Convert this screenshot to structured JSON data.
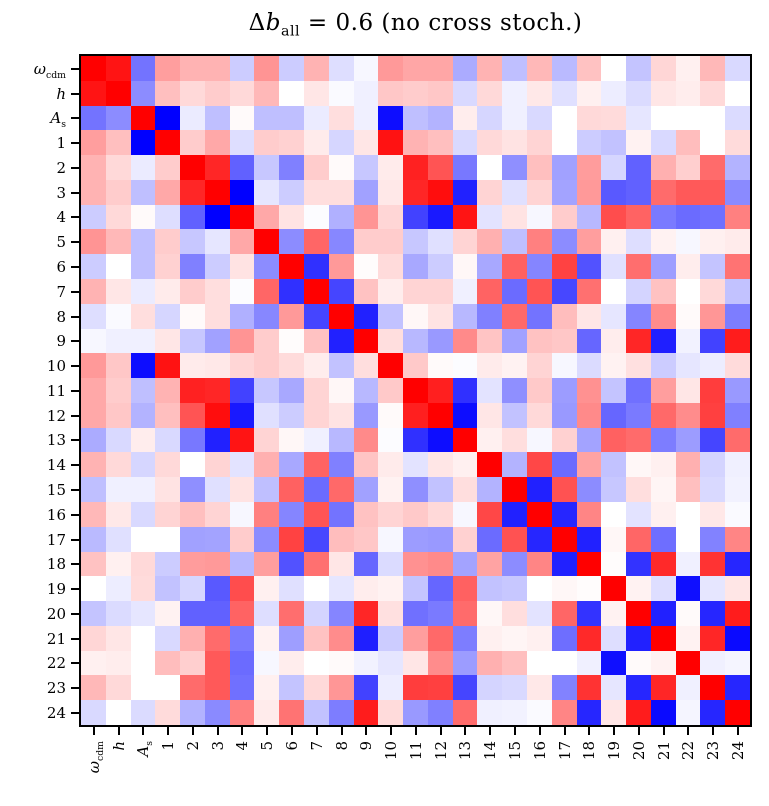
{
  "figure": {
    "background": "#ffffff",
    "border_color": "#000000"
  },
  "chart_data": {
    "type": "heatmap",
    "title": "Δb_all = 0.6 (no cross stoch.)",
    "title_parts": {
      "delta": "Δ",
      "variable": "b",
      "subscript": "all",
      "rest": " = 0.6 (no cross stoch.)"
    },
    "colormap": "bwr",
    "vmin": -1,
    "vmax": 1,
    "n_rows": 27,
    "n_cols": 27,
    "grid": false,
    "positive_color": "#ff0000",
    "negative_color": "#0000ff",
    "zero_color": "#ffffff",
    "labels": [
      "ω_cdm",
      "h",
      "A_s",
      "1",
      "2",
      "3",
      "4",
      "5",
      "6",
      "7",
      "8",
      "9",
      "10",
      "11",
      "12",
      "13",
      "14",
      "15",
      "16",
      "17",
      "18",
      "19",
      "20",
      "21",
      "22",
      "23",
      "24"
    ],
    "label_parts": [
      {
        "main": "ω",
        "sub": "cdm",
        "italic": true
      },
      {
        "main": "h",
        "italic": true
      },
      {
        "main": "A",
        "sub": "s",
        "italic": true
      },
      {
        "main": "1"
      },
      {
        "main": "2"
      },
      {
        "main": "3"
      },
      {
        "main": "4"
      },
      {
        "main": "5"
      },
      {
        "main": "6"
      },
      {
        "main": "7"
      },
      {
        "main": "8"
      },
      {
        "main": "9"
      },
      {
        "main": "10"
      },
      {
        "main": "11"
      },
      {
        "main": "12"
      },
      {
        "main": "13"
      },
      {
        "main": "14"
      },
      {
        "main": "15"
      },
      {
        "main": "16"
      },
      {
        "main": "17"
      },
      {
        "main": "18"
      },
      {
        "main": "19"
      },
      {
        "main": "20"
      },
      {
        "main": "21"
      },
      {
        "main": "22"
      },
      {
        "main": "23"
      },
      {
        "main": "24"
      }
    ],
    "matrix": [
      [
        1.0,
        0.92,
        -0.55,
        0.38,
        0.3,
        0.3,
        -0.2,
        0.42,
        -0.2,
        0.3,
        -0.13,
        -0.03,
        0.4,
        0.35,
        0.35,
        -0.33,
        0.3,
        -0.25,
        0.28,
        -0.27,
        0.24,
        0.0,
        -0.23,
        0.16,
        0.06,
        0.28,
        -0.15
      ],
      [
        0.92,
        1.0,
        -0.45,
        0.25,
        0.15,
        0.2,
        0.15,
        0.28,
        0.0,
        0.1,
        -0.02,
        -0.06,
        0.22,
        0.2,
        0.22,
        -0.15,
        0.15,
        -0.06,
        0.09,
        -0.12,
        0.06,
        -0.07,
        -0.14,
        0.1,
        0.07,
        0.15,
        0.0
      ],
      [
        -0.55,
        -0.45,
        1.0,
        -1.0,
        -0.08,
        -0.25,
        0.02,
        -0.25,
        -0.25,
        -0.08,
        0.13,
        -0.06,
        -0.95,
        -0.25,
        -0.3,
        0.07,
        -0.16,
        -0.06,
        -0.15,
        0.0,
        0.15,
        0.14,
        -0.1,
        0.0,
        0.0,
        0.0,
        -0.14
      ],
      [
        0.38,
        0.25,
        -1.0,
        1.0,
        0.2,
        0.34,
        -0.13,
        0.2,
        0.18,
        0.08,
        -0.16,
        0.1,
        0.93,
        0.3,
        0.25,
        -0.15,
        0.15,
        0.11,
        0.17,
        0.0,
        -0.2,
        -0.24,
        0.05,
        -0.15,
        0.26,
        0.0,
        0.14
      ],
      [
        0.3,
        0.15,
        -0.08,
        0.2,
        1.0,
        0.85,
        -0.62,
        -0.22,
        -0.5,
        0.2,
        0.02,
        -0.22,
        0.08,
        0.87,
        0.67,
        -0.53,
        0.0,
        -0.44,
        0.25,
        -0.37,
        0.39,
        -0.16,
        -0.62,
        0.31,
        0.19,
        0.58,
        -0.3
      ],
      [
        0.3,
        0.2,
        -0.25,
        0.34,
        0.85,
        1.0,
        -1.0,
        -0.1,
        -0.2,
        0.13,
        0.13,
        -0.37,
        0.09,
        0.85,
        0.95,
        -0.87,
        0.17,
        -0.12,
        0.17,
        -0.36,
        0.4,
        -0.65,
        -0.62,
        0.58,
        0.65,
        0.65,
        -0.46
      ],
      [
        -0.2,
        0.15,
        0.02,
        -0.13,
        -0.62,
        -1.0,
        1.0,
        0.34,
        0.11,
        -0.01,
        -0.31,
        0.42,
        0.16,
        -0.74,
        -0.9,
        0.92,
        -0.11,
        0.11,
        -0.03,
        0.2,
        -0.28,
        0.7,
        0.61,
        -0.52,
        -0.58,
        -0.56,
        0.5
      ],
      [
        0.42,
        0.28,
        -0.25,
        0.2,
        -0.22,
        -0.1,
        0.34,
        1.0,
        -0.45,
        0.6,
        -0.47,
        0.2,
        0.2,
        -0.22,
        -0.12,
        0.17,
        0.31,
        -0.25,
        0.5,
        -0.45,
        0.38,
        0.06,
        -0.13,
        0.05,
        -0.03,
        0.06,
        0.08
      ],
      [
        -0.2,
        0.0,
        -0.25,
        0.18,
        -0.5,
        -0.2,
        0.11,
        -0.45,
        1.0,
        -0.81,
        0.4,
        0.01,
        0.14,
        -0.34,
        -0.2,
        0.03,
        -0.34,
        0.62,
        -0.48,
        0.74,
        -0.68,
        -0.12,
        0.57,
        -0.38,
        0.07,
        -0.23,
        0.55
      ],
      [
        0.3,
        0.1,
        -0.08,
        0.08,
        0.2,
        0.13,
        -0.01,
        0.6,
        -0.81,
        1.0,
        -0.73,
        0.24,
        0.07,
        0.17,
        0.17,
        -0.06,
        0.61,
        -0.58,
        0.67,
        -0.72,
        0.56,
        0.0,
        -0.17,
        0.24,
        0.0,
        0.15,
        -0.24
      ],
      [
        -0.13,
        -0.02,
        0.13,
        -0.16,
        0.02,
        0.13,
        -0.31,
        -0.47,
        0.4,
        -0.73,
        1.0,
        -0.87,
        -0.24,
        0.03,
        0.11,
        -0.28,
        -0.5,
        0.59,
        -0.55,
        0.26,
        0.1,
        -0.1,
        -0.48,
        0.45,
        0.02,
        0.41,
        -0.51
      ],
      [
        -0.03,
        -0.06,
        -0.06,
        0.1,
        -0.22,
        -0.37,
        0.42,
        0.2,
        0.01,
        0.24,
        -0.87,
        1.0,
        0.13,
        -0.28,
        -0.4,
        0.46,
        0.23,
        -0.37,
        0.24,
        0.22,
        -0.6,
        0.07,
        0.85,
        -0.88,
        -0.05,
        -0.74,
        0.89
      ],
      [
        0.4,
        0.22,
        -0.95,
        0.93,
        0.08,
        0.09,
        0.16,
        0.2,
        0.14,
        0.07,
        -0.24,
        0.13,
        1.0,
        0.21,
        0.02,
        -0.01,
        0.08,
        0.05,
        0.17,
        -0.03,
        -0.14,
        0.05,
        0.12,
        -0.2,
        -0.1,
        -0.07,
        0.14
      ],
      [
        0.34,
        0.2,
        -0.25,
        0.3,
        0.87,
        0.85,
        -0.74,
        -0.22,
        -0.34,
        0.17,
        0.03,
        -0.28,
        0.21,
        1.0,
        0.88,
        -0.81,
        -0.11,
        -0.44,
        0.21,
        -0.39,
        0.43,
        -0.23,
        -0.56,
        0.38,
        0.1,
        0.76,
        -0.4
      ],
      [
        0.34,
        0.22,
        -0.3,
        0.25,
        0.67,
        0.95,
        -0.9,
        -0.12,
        -0.2,
        0.17,
        0.11,
        -0.4,
        0.02,
        0.88,
        1.0,
        -0.95,
        0.1,
        -0.24,
        0.15,
        -0.4,
        0.46,
        -0.6,
        -0.52,
        0.59,
        0.45,
        0.75,
        -0.5
      ],
      [
        -0.33,
        -0.15,
        0.07,
        -0.15,
        -0.53,
        -0.87,
        0.92,
        0.17,
        0.03,
        -0.06,
        -0.28,
        0.46,
        -0.01,
        -0.81,
        -0.95,
        1.0,
        0.06,
        0.13,
        -0.03,
        0.18,
        -0.36,
        0.62,
        0.58,
        -0.51,
        -0.39,
        -0.73,
        0.58
      ],
      [
        0.3,
        0.15,
        -0.16,
        0.15,
        0.0,
        0.17,
        -0.11,
        0.31,
        -0.34,
        0.61,
        -0.5,
        0.23,
        0.08,
        -0.11,
        0.1,
        0.06,
        1.0,
        -0.3,
        0.72,
        -0.58,
        0.36,
        -0.24,
        0.03,
        0.06,
        0.31,
        -0.17,
        -0.06
      ],
      [
        -0.25,
        -0.06,
        -0.06,
        0.11,
        -0.44,
        -0.12,
        0.11,
        -0.25,
        0.62,
        -0.58,
        0.59,
        -0.37,
        0.05,
        -0.44,
        -0.24,
        0.13,
        -0.3,
        1.0,
        -0.87,
        0.68,
        -0.45,
        -0.22,
        0.13,
        0.04,
        0.25,
        -0.15,
        -0.05
      ],
      [
        0.28,
        0.09,
        -0.15,
        0.17,
        0.25,
        0.17,
        -0.03,
        0.5,
        -0.48,
        0.67,
        -0.55,
        0.24,
        0.17,
        0.21,
        0.15,
        -0.03,
        0.72,
        -0.87,
        1.0,
        -0.85,
        0.48,
        0.0,
        -0.11,
        0.06,
        0.0,
        0.09,
        -0.02
      ],
      [
        -0.27,
        -0.12,
        0.0,
        0.0,
        -0.37,
        -0.36,
        0.2,
        -0.45,
        0.74,
        -0.72,
        0.26,
        0.22,
        -0.03,
        -0.39,
        -0.4,
        0.18,
        -0.58,
        0.68,
        -0.85,
        1.0,
        -0.87,
        0.03,
        0.6,
        -0.57,
        0.0,
        -0.49,
        0.48
      ],
      [
        0.24,
        0.06,
        0.15,
        -0.2,
        0.39,
        0.4,
        -0.28,
        0.38,
        -0.68,
        0.56,
        0.1,
        -0.6,
        -0.14,
        0.43,
        0.46,
        -0.36,
        0.36,
        -0.45,
        0.48,
        -0.87,
        1.0,
        0.01,
        -0.8,
        0.84,
        -0.06,
        0.8,
        -0.85
      ],
      [
        0.0,
        -0.07,
        0.14,
        -0.24,
        -0.16,
        -0.65,
        0.7,
        0.06,
        -0.12,
        0.0,
        -0.1,
        0.07,
        0.05,
        -0.23,
        -0.6,
        0.62,
        -0.24,
        -0.22,
        0.0,
        0.03,
        0.01,
        1.0,
        0.05,
        -0.13,
        -0.94,
        -0.1,
        0.1
      ],
      [
        -0.23,
        -0.14,
        -0.1,
        0.05,
        -0.62,
        -0.62,
        0.61,
        -0.13,
        0.57,
        -0.17,
        -0.48,
        0.85,
        0.12,
        -0.56,
        -0.52,
        0.58,
        0.03,
        0.13,
        -0.11,
        0.6,
        -0.8,
        0.05,
        1.0,
        -0.87,
        0.02,
        -0.85,
        0.89
      ],
      [
        0.16,
        0.1,
        0.0,
        -0.15,
        0.31,
        0.58,
        -0.52,
        0.05,
        -0.38,
        0.24,
        0.45,
        -0.88,
        -0.2,
        0.38,
        0.59,
        -0.51,
        0.06,
        0.04,
        0.06,
        -0.57,
        0.84,
        -0.13,
        -0.87,
        1.0,
        0.05,
        0.85,
        -0.96
      ],
      [
        0.06,
        0.07,
        0.0,
        0.26,
        0.19,
        0.65,
        -0.58,
        -0.03,
        0.07,
        0.0,
        0.02,
        -0.05,
        -0.1,
        0.1,
        0.45,
        -0.39,
        0.31,
        0.25,
        0.0,
        0.0,
        -0.06,
        -0.94,
        0.02,
        0.05,
        1.0,
        -0.06,
        -0.04
      ],
      [
        0.28,
        0.15,
        0.0,
        0.0,
        0.58,
        0.65,
        -0.56,
        0.06,
        -0.23,
        0.15,
        0.41,
        -0.74,
        -0.07,
        0.76,
        0.75,
        -0.73,
        -0.17,
        -0.15,
        0.09,
        -0.49,
        0.8,
        -0.1,
        -0.85,
        0.85,
        -0.06,
        1.0,
        -0.85
      ],
      [
        -0.15,
        0.0,
        -0.14,
        0.14,
        -0.3,
        -0.46,
        0.5,
        0.08,
        0.55,
        -0.24,
        -0.51,
        0.89,
        0.14,
        -0.4,
        -0.5,
        0.58,
        -0.06,
        -0.05,
        -0.02,
        0.48,
        -0.85,
        0.1,
        0.89,
        -0.96,
        -0.04,
        -0.85,
        1.0
      ]
    ]
  }
}
